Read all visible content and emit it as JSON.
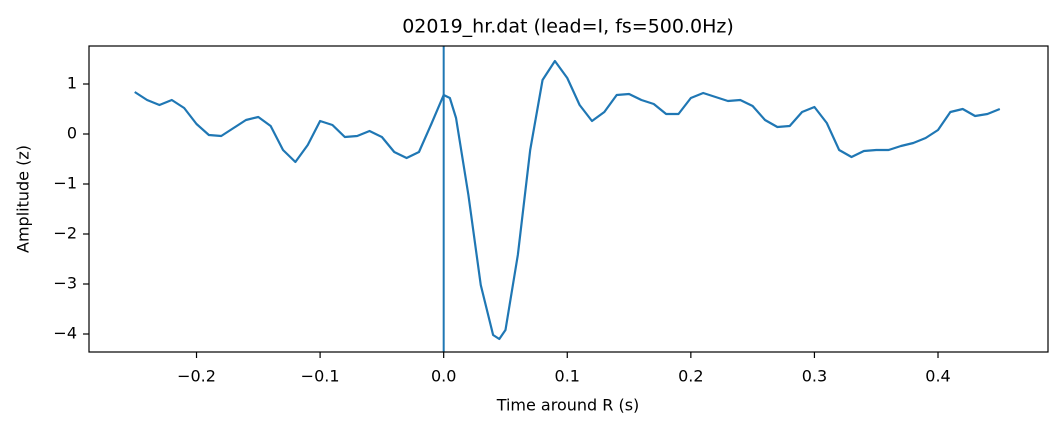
{
  "chart_data": {
    "type": "line",
    "title": "02019_hr.dat (lead=I, fs=500.0Hz)",
    "x_label": "Time around R (s)",
    "y_label": "Amplitude (z)",
    "x": [
      -0.25,
      -0.24,
      -0.23,
      -0.22,
      -0.21,
      -0.2,
      -0.19,
      -0.18,
      -0.17,
      -0.16,
      -0.15,
      -0.14,
      -0.13,
      -0.12,
      -0.11,
      -0.1,
      -0.09,
      -0.08,
      -0.07,
      -0.06,
      -0.05,
      -0.04,
      -0.03,
      -0.02,
      -0.01,
      0,
      0.005,
      0.01,
      0.02,
      0.03,
      0.04,
      0.045,
      0.05,
      0.06,
      0.07,
      0.08,
      0.09,
      0.1,
      0.11,
      0.12,
      0.13,
      0.14,
      0.15,
      0.16,
      0.17,
      0.18,
      0.19,
      0.2,
      0.21,
      0.22,
      0.23,
      0.24,
      0.25,
      0.26,
      0.27,
      0.28,
      0.29,
      0.3,
      0.31,
      0.32,
      0.33,
      0.34,
      0.35,
      0.36,
      0.37,
      0.38,
      0.39,
      0.4,
      0.41,
      0.42,
      0.43,
      0.44,
      0.45
    ],
    "series": [
      {
        "color": "#1f77b4",
        "values": [
          0.84,
          0.68,
          0.58,
          0.68,
          0.52,
          0.2,
          -0.02,
          -0.04,
          0.12,
          0.28,
          0.34,
          0.16,
          -0.32,
          -0.56,
          -0.22,
          0.26,
          0.18,
          -0.06,
          -0.04,
          0.06,
          -0.06,
          -0.36,
          -0.48,
          -0.36,
          0.2,
          0.78,
          0.72,
          0.32,
          -1.22,
          -3.02,
          -4.02,
          -4.1,
          -3.92,
          -2.42,
          -0.32,
          1.08,
          1.46,
          1.12,
          0.58,
          0.26,
          0.44,
          0.78,
          0.8,
          0.68,
          0.6,
          0.4,
          0.4,
          0.72,
          0.82,
          0.74,
          0.66,
          0.68,
          0.56,
          0.28,
          0.14,
          0.16,
          0.44,
          0.54,
          0.22,
          -0.32,
          -0.46,
          -0.34,
          -0.32,
          -0.32,
          -0.24,
          -0.18,
          -0.08,
          0.08,
          0.44,
          0.5,
          0.36,
          0.4,
          0.5
        ]
      }
    ],
    "vline": 0,
    "vline_color": "#1f77b4",
    "xlim": [
      -0.287,
      0.489
    ],
    "ylim": [
      -4.36,
      1.76
    ],
    "xticks": [
      {
        "value": -0.2,
        "label": "−0.2"
      },
      {
        "value": -0.1,
        "label": "−0.1"
      },
      {
        "value": 0,
        "label": "0.0"
      },
      0.1,
      0.2,
      0.3,
      0.4
    ],
    "yticks": [
      {
        "value": -4,
        "label": "−4"
      },
      {
        "value": -3,
        "label": "−3"
      },
      {
        "value": -2,
        "label": "−2"
      },
      {
        "value": -1,
        "label": "−1"
      },
      0,
      1
    ],
    "grid": false
  }
}
